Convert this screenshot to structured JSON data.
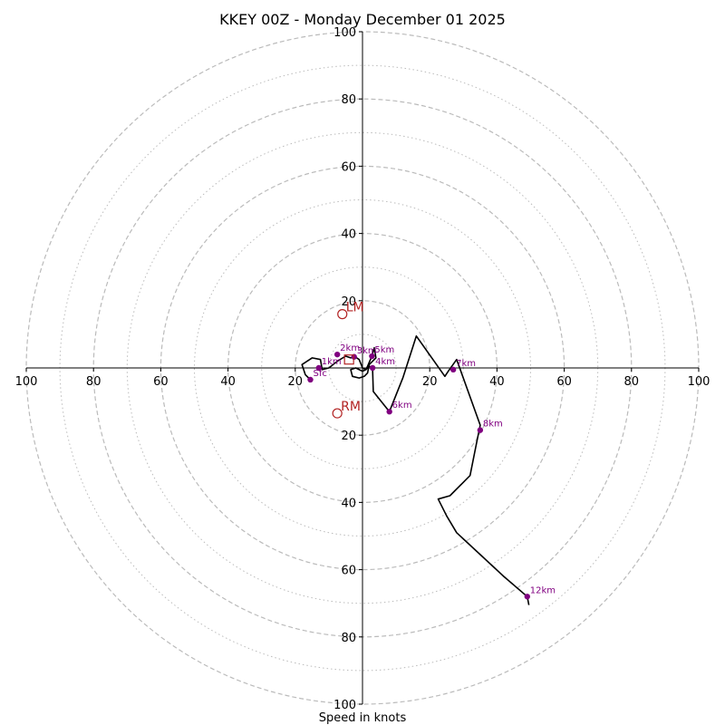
{
  "chart_data": {
    "type": "hodograph",
    "title": "KKEY 00Z - Monday December 01 2025",
    "xlabel": "Speed in knots",
    "axis_range": [
      -100,
      100
    ],
    "dashed_rings": [
      20,
      40,
      60,
      80,
      100
    ],
    "dotted_rings": [
      10,
      30,
      50,
      70,
      90
    ],
    "x_tick_labels": [
      "100",
      "80",
      "60",
      "40",
      "20",
      "20",
      "40",
      "60",
      "80",
      "100"
    ],
    "x_tick_values": [
      -100,
      -80,
      -60,
      -40,
      -20,
      20,
      40,
      60,
      80,
      100
    ],
    "y_tick_labels": [
      "100",
      "80",
      "60",
      "40",
      "20",
      "20",
      "40",
      "60",
      "80",
      "100"
    ],
    "y_tick_values": [
      100,
      80,
      60,
      40,
      20,
      -20,
      -40,
      -60,
      -80,
      -100
    ],
    "line_color": "#000000",
    "marker_color": "#800080",
    "motion_color": "#b22222",
    "grid_color": "#bbbbbb",
    "hodograph_line": [
      [
        -15.5,
        -3.5
      ],
      [
        -17,
        -2
      ],
      [
        -18,
        1
      ],
      [
        -15,
        3
      ],
      [
        -12.5,
        2.5
      ],
      [
        -12,
        -0.5
      ],
      [
        -10,
        0
      ],
      [
        -7.5,
        2
      ],
      [
        -5,
        3.5
      ],
      [
        -3.5,
        3
      ],
      [
        -2.5,
        3.5
      ],
      [
        -1,
        2.5
      ],
      [
        0,
        0
      ],
      [
        1,
        -0.5
      ],
      [
        1.5,
        0.5
      ],
      [
        2.8,
        3.5
      ],
      [
        3.5,
        6
      ],
      [
        4,
        3
      ],
      [
        2,
        1
      ],
      [
        1.5,
        -1.5
      ],
      [
        0.5,
        -2.5
      ],
      [
        -1,
        -3
      ],
      [
        -3,
        -2.5
      ],
      [
        -3.5,
        -0.5
      ],
      [
        -2,
        0
      ],
      [
        0,
        -1
      ],
      [
        1,
        -0.5
      ],
      [
        2,
        0.5
      ],
      [
        3,
        0
      ],
      [
        3.2,
        -7
      ],
      [
        8,
        -13
      ],
      [
        12,
        -3
      ],
      [
        16,
        9.5
      ],
      [
        24.5,
        -2.5
      ],
      [
        25.5,
        -1
      ],
      [
        28,
        2.5
      ],
      [
        35,
        -17
      ],
      [
        34,
        -22
      ],
      [
        32,
        -32
      ],
      [
        26,
        -38
      ],
      [
        22.5,
        -39
      ],
      [
        25,
        -44
      ],
      [
        28,
        -49
      ],
      [
        42,
        -62
      ],
      [
        49,
        -68
      ],
      [
        49.5,
        -70.5
      ]
    ],
    "height_markers": [
      {
        "label": "Sfc",
        "u": -15.5,
        "v": -3.5
      },
      {
        "label": "1km",
        "u": -13,
        "v": 0
      },
      {
        "label": "2km",
        "u": -7.5,
        "v": 4
      },
      {
        "label": "3km",
        "u": -2.5,
        "v": 3.3
      },
      {
        "label": "4km",
        "u": 3,
        "v": 0
      },
      {
        "label": "5km",
        "u": 2.8,
        "v": 3.5
      },
      {
        "label": "6km",
        "u": 8,
        "v": -13
      },
      {
        "label": "7km",
        "u": 27,
        "v": -0.5
      },
      {
        "label": "8km",
        "u": 35,
        "v": -18.5
      },
      {
        "label": "12km",
        "u": 49,
        "v": -68
      }
    ],
    "storm_motions": [
      {
        "label": "LM",
        "u": -6,
        "v": 16
      },
      {
        "label": "RM",
        "u": -7.5,
        "v": -13.5
      }
    ],
    "mean_wind_marker": {
      "u": -4,
      "v": 2.5
    }
  }
}
